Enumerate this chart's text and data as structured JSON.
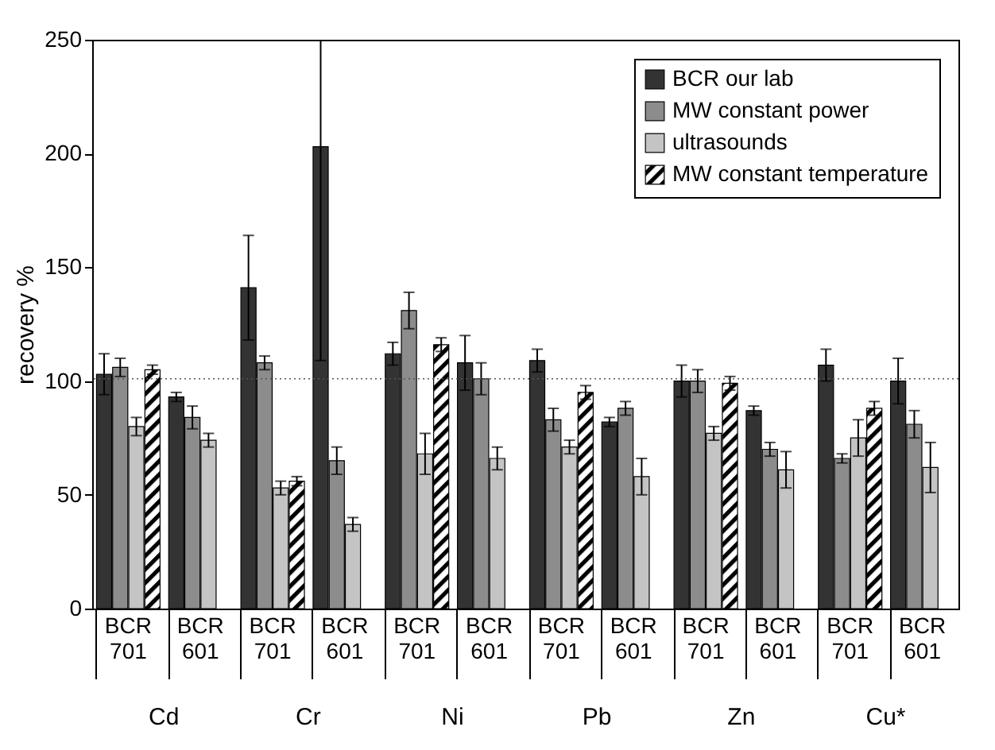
{
  "chart_data": {
    "type": "bar",
    "ylabel": "recovery %",
    "categories": [
      "BCR 701",
      "BCR 601",
      "BCR 701",
      "BCR 601",
      "BCR 701",
      "BCR 601",
      "BCR 701",
      "BCR 601",
      "BCR 701",
      "BCR 601",
      "BCR 701",
      "BCR 601"
    ],
    "annotations": [
      "Cd",
      "Cr",
      "Ni",
      "Pb",
      "Zn",
      "Cu*"
    ],
    "ylim": [
      0,
      250
    ],
    "yticks": [
      0,
      50,
      100,
      150,
      200,
      250
    ],
    "grid": false,
    "legend": "top right",
    "ref_lines": [
      {
        "axis": "y",
        "value": 101,
        "line_style": "dotted"
      }
    ],
    "series": [
      {
        "name": "BCR our lab",
        "color": "#333333",
        "values": [
          103,
          93,
          141,
          203,
          112,
          108,
          109,
          82,
          100,
          87,
          107,
          100
        ],
        "errors": [
          9,
          2,
          23,
          [
            109,
            250
          ],
          5,
          12,
          5,
          2,
          7,
          2,
          7,
          10
        ]
      },
      {
        "name": "MW constant power",
        "color": "#8c8c8c",
        "values": [
          106,
          84,
          108,
          65,
          131,
          101,
          83,
          88,
          100,
          70,
          66,
          81
        ],
        "errors": [
          4,
          5,
          3,
          6,
          8,
          7,
          5,
          3,
          5,
          3,
          2,
          6
        ]
      },
      {
        "name": "ultrasounds",
        "color": "#c4c4c4",
        "values": [
          80,
          74,
          53,
          37,
          68,
          66,
          71,
          58,
          77,
          61,
          75,
          62
        ],
        "errors": [
          4,
          3,
          3,
          3,
          9,
          5,
          3,
          8,
          3,
          8,
          8,
          11
        ]
      },
      {
        "name": "MW constant temperature",
        "color": "#000000",
        "values": [
          105,
          null,
          56,
          null,
          116,
          null,
          95,
          null,
          99,
          null,
          88,
          null
        ],
        "errors": [
          2,
          null,
          2,
          null,
          3,
          null,
          3,
          null,
          3,
          null,
          3,
          null
        ]
      }
    ]
  }
}
